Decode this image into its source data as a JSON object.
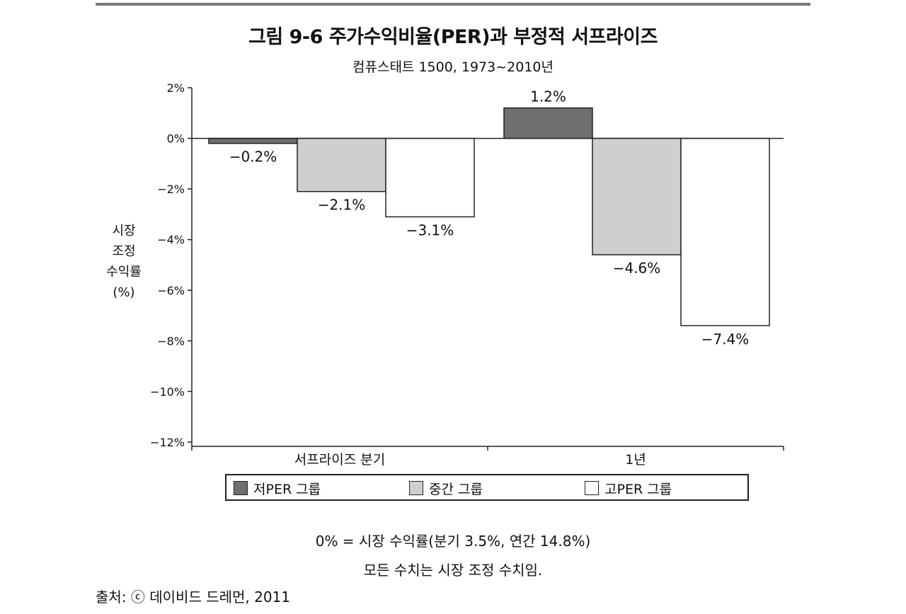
{
  "figure": {
    "title": "그림 9-6  주가수익비율(PER)과 부정적 서프라이즈",
    "subtitle": "컴퓨스태트 1500, 1973~2010년"
  },
  "chart_data": {
    "type": "bar",
    "ylabel": "시장\n조정\n수익률\n(%)",
    "xlabel": "",
    "ylim": [
      -12,
      2
    ],
    "yticks": [
      2,
      0,
      -2,
      -4,
      -6,
      -8,
      -10,
      -12
    ],
    "ytick_labels": [
      "2%",
      "0%",
      "−2%",
      "−4%",
      "−6%",
      "−8%",
      "−10%",
      "−12%"
    ],
    "categories": [
      "서프라이즈 분기",
      "1년"
    ],
    "series": [
      {
        "name": "저PER 그룹",
        "color": "#707070",
        "values": [
          -0.2,
          1.2
        ],
        "labels": [
          "−0.2%",
          "1.2%"
        ]
      },
      {
        "name": "중간 그룹",
        "color": "#cfcfcf",
        "values": [
          -2.1,
          -4.6
        ],
        "labels": [
          "−2.1%",
          "−4.6%"
        ]
      },
      {
        "name": "고PER 그룹",
        "color": "#ffffff",
        "values": [
          -3.1,
          -7.4
        ],
        "labels": [
          "−3.1%",
          "−7.4%"
        ]
      }
    ],
    "legend_position": "bottom",
    "grid": false
  },
  "notes": {
    "line1": "0% = 시장 수익률(분기 3.5%, 연간 14.8%)",
    "line2": "모든 수치는 시장 조정 수치임."
  },
  "source": "출처: ⓒ 데이비드 드레먼, 2011"
}
